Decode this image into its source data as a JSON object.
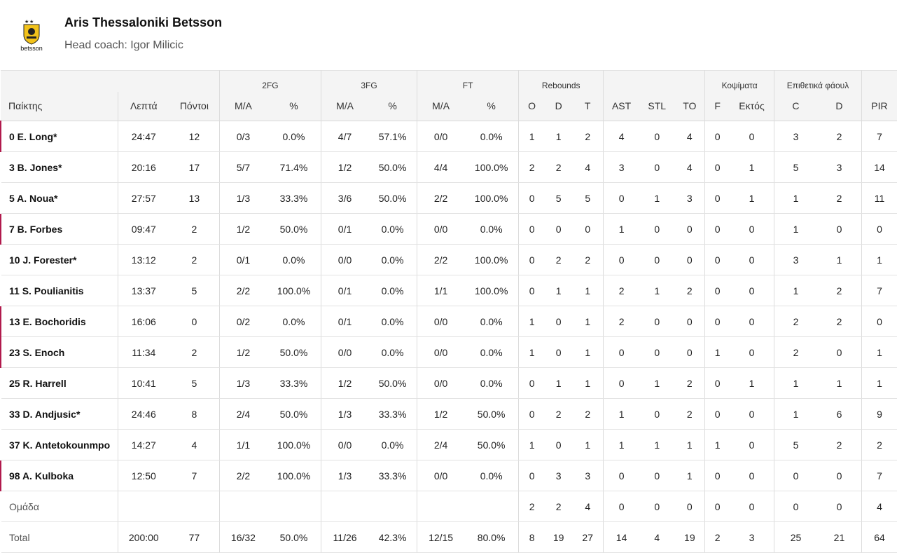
{
  "team": {
    "name": "Aris Thessaloniki Betsson",
    "coach": "Head coach: Igor Milicic",
    "logo_text": "betsson",
    "logo_color": "#f2c21a"
  },
  "header": {
    "groups": {
      "fg2": "2FG",
      "fg3": "3FG",
      "ft": "FT",
      "rebounds": "Rebounds",
      "blocks": "Κοψίματα",
      "fouls": "Επιθετικά φάουλ"
    },
    "cols": {
      "player": "Παίκτης",
      "min": "Λεπτά",
      "pts": "Πόντοι",
      "fg2_ma": "M/A",
      "fg2_pct": "%",
      "fg3_ma": "M/A",
      "fg3_pct": "%",
      "ft_ma": "M/A",
      "ft_pct": "%",
      "reb_o": "O",
      "reb_d": "D",
      "reb_t": "T",
      "ast": "AST",
      "stl": "STL",
      "to": "TO",
      "blk_f": "F",
      "blk_a": "Εκτός",
      "foul_c": "C",
      "foul_d": "D",
      "pir": "PIR"
    }
  },
  "rows": [
    {
      "player": "0 E. Long*",
      "bench": true,
      "min": "24:47",
      "pts": "12",
      "fg2_ma": "0/3",
      "fg2_pct": "0.0%",
      "fg3_ma": "4/7",
      "fg3_pct": "57.1%",
      "ft_ma": "0/0",
      "ft_pct": "0.0%",
      "reb_o": "1",
      "reb_d": "1",
      "reb_t": "2",
      "ast": "4",
      "stl": "0",
      "to": "4",
      "blk_f": "0",
      "blk_a": "0",
      "foul_c": "3",
      "foul_d": "2",
      "pir": "7"
    },
    {
      "player": "3 B. Jones*",
      "bench": false,
      "min": "20:16",
      "pts": "17",
      "fg2_ma": "5/7",
      "fg2_pct": "71.4%",
      "fg3_ma": "1/2",
      "fg3_pct": "50.0%",
      "ft_ma": "4/4",
      "ft_pct": "100.0%",
      "reb_o": "2",
      "reb_d": "2",
      "reb_t": "4",
      "ast": "3",
      "stl": "0",
      "to": "4",
      "blk_f": "0",
      "blk_a": "1",
      "foul_c": "5",
      "foul_d": "3",
      "pir": "14"
    },
    {
      "player": "5 A. Noua*",
      "bench": false,
      "min": "27:57",
      "pts": "13",
      "fg2_ma": "1/3",
      "fg2_pct": "33.3%",
      "fg3_ma": "3/6",
      "fg3_pct": "50.0%",
      "ft_ma": "2/2",
      "ft_pct": "100.0%",
      "reb_o": "0",
      "reb_d": "5",
      "reb_t": "5",
      "ast": "0",
      "stl": "1",
      "to": "3",
      "blk_f": "0",
      "blk_a": "1",
      "foul_c": "1",
      "foul_d": "2",
      "pir": "11"
    },
    {
      "player": "7 B. Forbes",
      "bench": true,
      "min": "09:47",
      "pts": "2",
      "fg2_ma": "1/2",
      "fg2_pct": "50.0%",
      "fg3_ma": "0/1",
      "fg3_pct": "0.0%",
      "ft_ma": "0/0",
      "ft_pct": "0.0%",
      "reb_o": "0",
      "reb_d": "0",
      "reb_t": "0",
      "ast": "1",
      "stl": "0",
      "to": "0",
      "blk_f": "0",
      "blk_a": "0",
      "foul_c": "1",
      "foul_d": "0",
      "pir": "0"
    },
    {
      "player": "10 J. Forester*",
      "bench": false,
      "min": "13:12",
      "pts": "2",
      "fg2_ma": "0/1",
      "fg2_pct": "0.0%",
      "fg3_ma": "0/0",
      "fg3_pct": "0.0%",
      "ft_ma": "2/2",
      "ft_pct": "100.0%",
      "reb_o": "0",
      "reb_d": "2",
      "reb_t": "2",
      "ast": "0",
      "stl": "0",
      "to": "0",
      "blk_f": "0",
      "blk_a": "0",
      "foul_c": "3",
      "foul_d": "1",
      "pir": "1"
    },
    {
      "player": "11 S. Poulianitis",
      "bench": false,
      "min": "13:37",
      "pts": "5",
      "fg2_ma": "2/2",
      "fg2_pct": "100.0%",
      "fg3_ma": "0/1",
      "fg3_pct": "0.0%",
      "ft_ma": "1/1",
      "ft_pct": "100.0%",
      "reb_o": "0",
      "reb_d": "1",
      "reb_t": "1",
      "ast": "2",
      "stl": "1",
      "to": "2",
      "blk_f": "0",
      "blk_a": "0",
      "foul_c": "1",
      "foul_d": "2",
      "pir": "7"
    },
    {
      "player": "13 E. Bochoridis",
      "bench": true,
      "min": "16:06",
      "pts": "0",
      "fg2_ma": "0/2",
      "fg2_pct": "0.0%",
      "fg3_ma": "0/1",
      "fg3_pct": "0.0%",
      "ft_ma": "0/0",
      "ft_pct": "0.0%",
      "reb_o": "1",
      "reb_d": "0",
      "reb_t": "1",
      "ast": "2",
      "stl": "0",
      "to": "0",
      "blk_f": "0",
      "blk_a": "0",
      "foul_c": "2",
      "foul_d": "2",
      "pir": "0"
    },
    {
      "player": "23 S. Enoch",
      "bench": true,
      "min": "11:34",
      "pts": "2",
      "fg2_ma": "1/2",
      "fg2_pct": "50.0%",
      "fg3_ma": "0/0",
      "fg3_pct": "0.0%",
      "ft_ma": "0/0",
      "ft_pct": "0.0%",
      "reb_o": "1",
      "reb_d": "0",
      "reb_t": "1",
      "ast": "0",
      "stl": "0",
      "to": "0",
      "blk_f": "1",
      "blk_a": "0",
      "foul_c": "2",
      "foul_d": "0",
      "pir": "1"
    },
    {
      "player": "25 R. Harrell",
      "bench": false,
      "min": "10:41",
      "pts": "5",
      "fg2_ma": "1/3",
      "fg2_pct": "33.3%",
      "fg3_ma": "1/2",
      "fg3_pct": "50.0%",
      "ft_ma": "0/0",
      "ft_pct": "0.0%",
      "reb_o": "0",
      "reb_d": "1",
      "reb_t": "1",
      "ast": "0",
      "stl": "1",
      "to": "2",
      "blk_f": "0",
      "blk_a": "1",
      "foul_c": "1",
      "foul_d": "1",
      "pir": "1"
    },
    {
      "player": "33 D. Andjusic*",
      "bench": false,
      "min": "24:46",
      "pts": "8",
      "fg2_ma": "2/4",
      "fg2_pct": "50.0%",
      "fg3_ma": "1/3",
      "fg3_pct": "33.3%",
      "ft_ma": "1/2",
      "ft_pct": "50.0%",
      "reb_o": "0",
      "reb_d": "2",
      "reb_t": "2",
      "ast": "1",
      "stl": "0",
      "to": "2",
      "blk_f": "0",
      "blk_a": "0",
      "foul_c": "1",
      "foul_d": "6",
      "pir": "9"
    },
    {
      "player": "37 K. Antetokounmpo",
      "bench": false,
      "min": "14:27",
      "pts": "4",
      "fg2_ma": "1/1",
      "fg2_pct": "100.0%",
      "fg3_ma": "0/0",
      "fg3_pct": "0.0%",
      "ft_ma": "2/4",
      "ft_pct": "50.0%",
      "reb_o": "1",
      "reb_d": "0",
      "reb_t": "1",
      "ast": "1",
      "stl": "1",
      "to": "1",
      "blk_f": "1",
      "blk_a": "0",
      "foul_c": "5",
      "foul_d": "2",
      "pir": "2"
    },
    {
      "player": "98 A. Kulboka",
      "bench": true,
      "min": "12:50",
      "pts": "7",
      "fg2_ma": "2/2",
      "fg2_pct": "100.0%",
      "fg3_ma": "1/3",
      "fg3_pct": "33.3%",
      "ft_ma": "0/0",
      "ft_pct": "0.0%",
      "reb_o": "0",
      "reb_d": "3",
      "reb_t": "3",
      "ast": "0",
      "stl": "0",
      "to": "1",
      "blk_f": "0",
      "blk_a": "0",
      "foul_c": "0",
      "foul_d": "0",
      "pir": "7"
    }
  ],
  "team_row": {
    "player": "Ομάδα",
    "min": "",
    "pts": "",
    "fg2_ma": "",
    "fg2_pct": "",
    "fg3_ma": "",
    "fg3_pct": "",
    "ft_ma": "",
    "ft_pct": "",
    "reb_o": "2",
    "reb_d": "2",
    "reb_t": "4",
    "ast": "0",
    "stl": "0",
    "to": "0",
    "blk_f": "0",
    "blk_a": "0",
    "foul_c": "0",
    "foul_d": "0",
    "pir": "4"
  },
  "total_row": {
    "player": "Total",
    "min": "200:00",
    "pts": "77",
    "fg2_ma": "16/32",
    "fg2_pct": "50.0%",
    "fg3_ma": "11/26",
    "fg3_pct": "42.3%",
    "ft_ma": "12/15",
    "ft_pct": "80.0%",
    "reb_o": "8",
    "reb_d": "19",
    "reb_t": "27",
    "ast": "14",
    "stl": "4",
    "to": "19",
    "blk_f": "2",
    "blk_a": "3",
    "foul_c": "25",
    "foul_d": "21",
    "pir": "64"
  },
  "accent_bench": "#b11a4d"
}
